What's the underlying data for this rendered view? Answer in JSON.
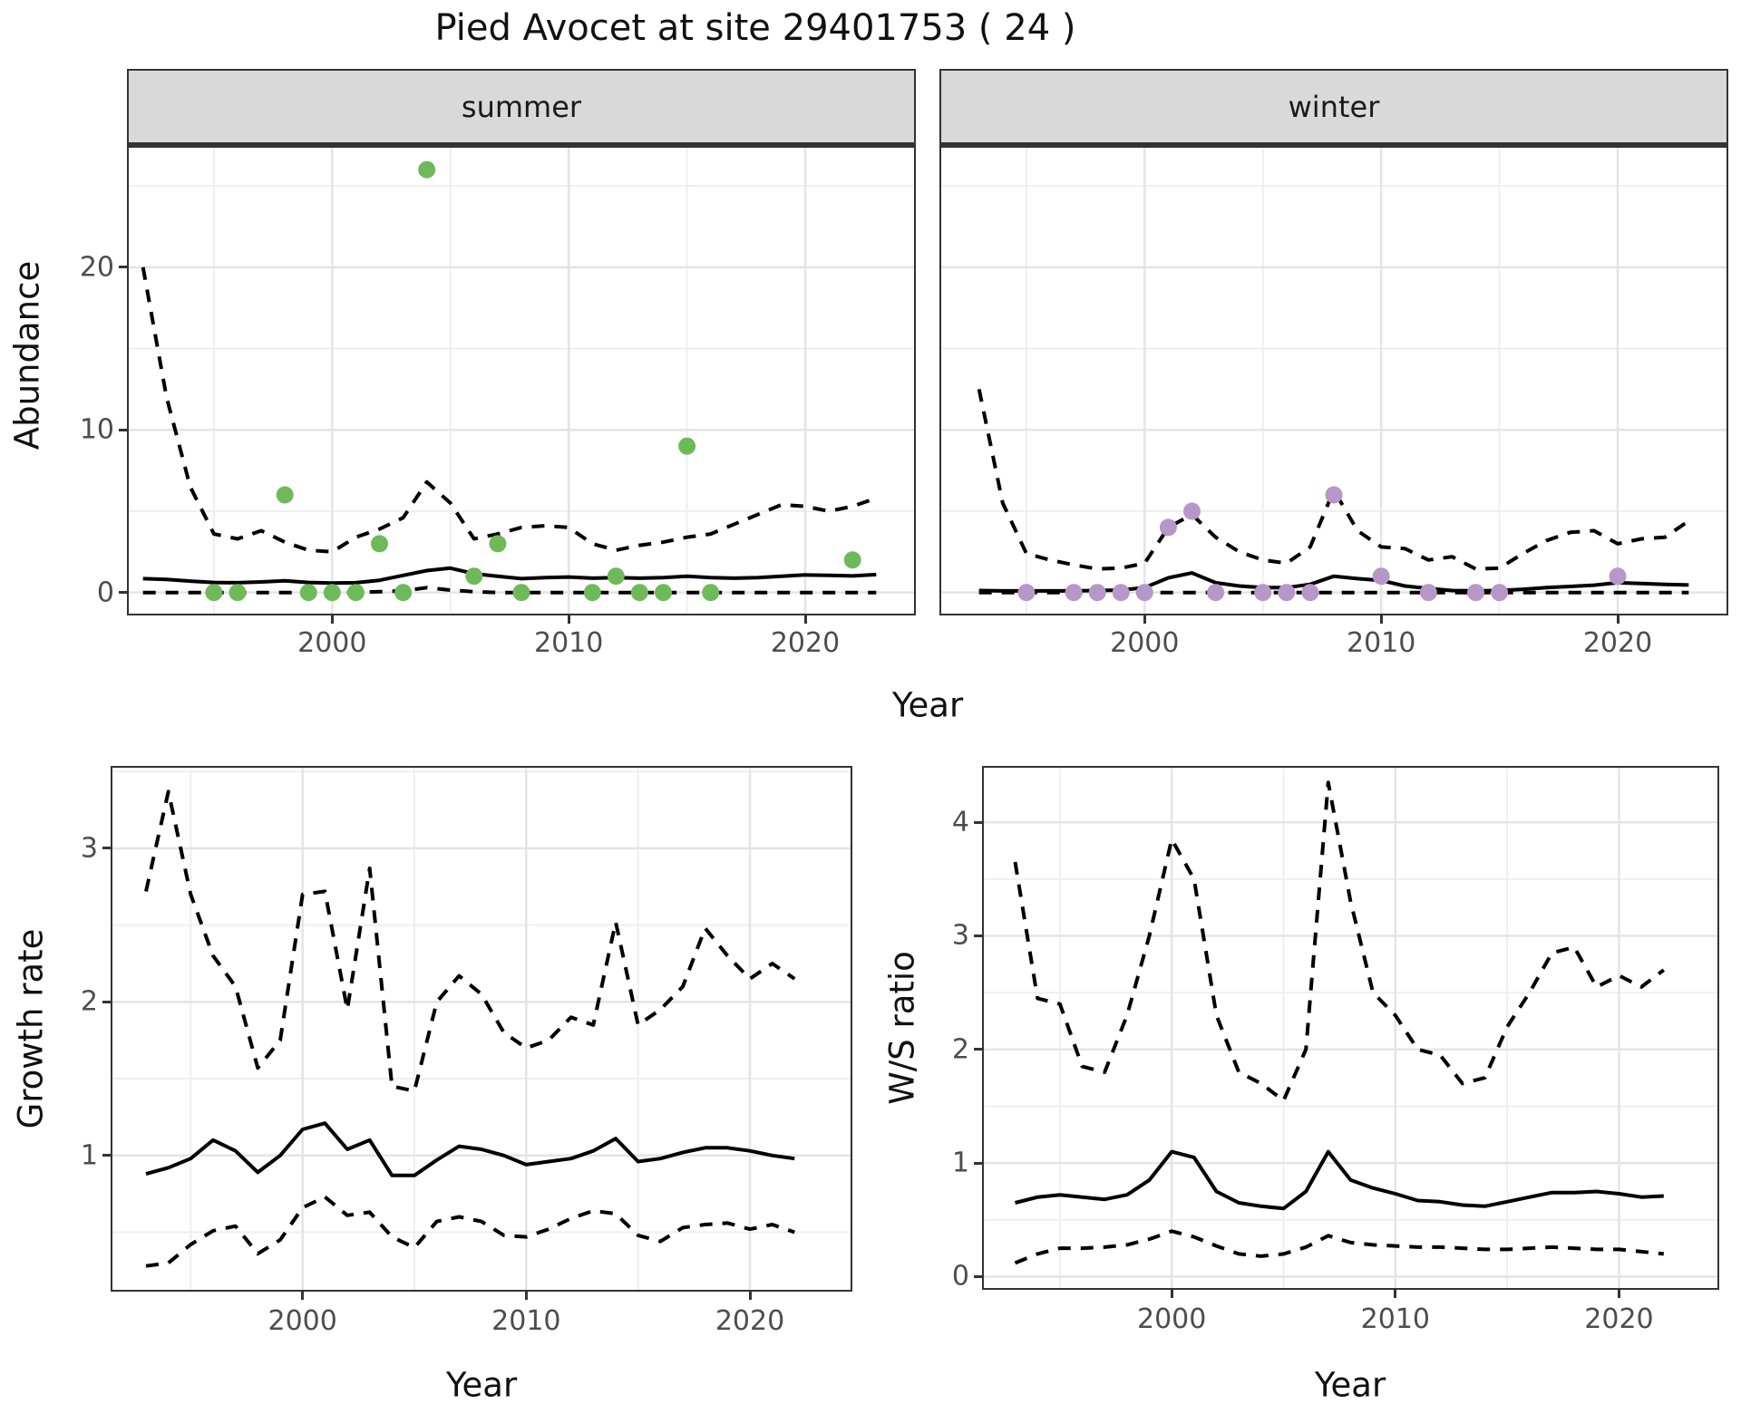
{
  "title": "Pied Avocet at site 29401753 ( 24 )",
  "colors": {
    "summer_point": "#6eba5a",
    "winter_point": "#b797c7",
    "line": "#000000",
    "strip_bg": "#d9d9d9",
    "panel_border": "#333333",
    "grid_major": "#e4e4e4",
    "grid_minor": "#efefef",
    "axis_text": "#4d4d4d"
  },
  "facets": {
    "summer_label": "summer",
    "winter_label": "winter"
  },
  "axis_titles": {
    "abundance": "Abundance",
    "year_top": "Year",
    "growth": "Growth rate",
    "ws_ratio": "W/S ratio",
    "year_growth": "Year",
    "year_ws": "Year"
  },
  "chart_data": [
    {
      "id": "summer",
      "type": "line",
      "title": "summer",
      "xlabel": "Year",
      "ylabel": "Abundance",
      "xlim": [
        1991.4,
        2024.6
      ],
      "ylim": [
        -1.3,
        27.35
      ],
      "xticks": [
        2000,
        2010,
        2020
      ],
      "minor_xticks": [
        1995,
        2005,
        2015
      ],
      "yticks": [
        0,
        10,
        20
      ],
      "minor_yticks": [
        5,
        15,
        25
      ],
      "series": [
        {
          "name": "upper CI",
          "style": "dashed",
          "x": [
            1992,
            1993,
            1994,
            1995,
            1996,
            1997,
            1998,
            1999,
            2000,
            2001,
            2002,
            2003,
            2004,
            2005,
            2006,
            2007,
            2008,
            2009,
            2010,
            2011,
            2012,
            2013,
            2014,
            2015,
            2016,
            2017,
            2018,
            2019,
            2020,
            2021,
            2022,
            2023
          ],
          "y": [
            20,
            12,
            6.5,
            3.6,
            3.3,
            3.8,
            3.1,
            2.6,
            2.5,
            3.4,
            3.9,
            4.6,
            6.8,
            5.5,
            3.3,
            3.6,
            4.0,
            4.1,
            4.0,
            3.0,
            2.6,
            2.9,
            3.1,
            3.4,
            3.6,
            4.2,
            4.8,
            5.4,
            5.3,
            5.0,
            5.3,
            5.8
          ]
        },
        {
          "name": "estimate",
          "style": "solid",
          "x": [
            1992,
            1993,
            1994,
            1995,
            1996,
            1997,
            1998,
            1999,
            2000,
            2001,
            2002,
            2003,
            2004,
            2005,
            2006,
            2007,
            2008,
            2009,
            2010,
            2011,
            2012,
            2013,
            2014,
            2015,
            2016,
            2017,
            2018,
            2019,
            2020,
            2021,
            2022,
            2023
          ],
          "y": [
            0.85,
            0.8,
            0.7,
            0.62,
            0.6,
            0.65,
            0.72,
            0.62,
            0.58,
            0.6,
            0.75,
            1.05,
            1.35,
            1.5,
            1.15,
            1.0,
            0.85,
            0.92,
            0.95,
            0.88,
            0.92,
            0.88,
            0.92,
            1.0,
            0.92,
            0.88,
            0.92,
            1.0,
            1.08,
            1.05,
            1.02,
            1.1
          ]
        },
        {
          "name": "lower CI",
          "style": "dashed",
          "x": [
            1992,
            1993,
            1994,
            1995,
            1996,
            1997,
            1998,
            1999,
            2000,
            2001,
            2002,
            2003,
            2004,
            2005,
            2006,
            2007,
            2008,
            2009,
            2010,
            2011,
            2012,
            2013,
            2014,
            2015,
            2016,
            2017,
            2018,
            2019,
            2020,
            2021,
            2022,
            2023
          ],
          "y": [
            0,
            0,
            0,
            0,
            0,
            0,
            0,
            0,
            0,
            0,
            0.05,
            0.1,
            0.3,
            0.15,
            0.05,
            0,
            0,
            0,
            0,
            0,
            0,
            0,
            0,
            0,
            0,
            0,
            0,
            0,
            0,
            0,
            0,
            0
          ]
        }
      ],
      "points": {
        "color_key": "summer_point",
        "xy": [
          [
            1995,
            0
          ],
          [
            1996,
            0
          ],
          [
            1998,
            6
          ],
          [
            1999,
            0
          ],
          [
            2000,
            0
          ],
          [
            2001,
            0
          ],
          [
            2002,
            3
          ],
          [
            2003,
            0
          ],
          [
            2004,
            26
          ],
          [
            2006,
            1
          ],
          [
            2007,
            3
          ],
          [
            2008,
            0
          ],
          [
            2011,
            0
          ],
          [
            2012,
            1
          ],
          [
            2013,
            0
          ],
          [
            2014,
            0
          ],
          [
            2015,
            9
          ],
          [
            2016,
            0
          ],
          [
            2022,
            2
          ]
        ]
      }
    },
    {
      "id": "winter",
      "type": "line",
      "title": "winter",
      "xlabel": "Year",
      "ylabel": "Abundance",
      "xlim": [
        1991.4,
        2024.6
      ],
      "ylim": [
        -1.3,
        27.35
      ],
      "xticks": [
        2000,
        2010,
        2020
      ],
      "minor_xticks": [
        1995,
        2005,
        2015
      ],
      "yticks": [
        0,
        10,
        20
      ],
      "minor_yticks": [
        5,
        15,
        25
      ],
      "hide_ylabels": true,
      "series": [
        {
          "name": "upper CI",
          "style": "dashed",
          "x": [
            1993,
            1994,
            1995,
            1996,
            1997,
            1998,
            1999,
            2000,
            2001,
            2002,
            2003,
            2004,
            2005,
            2006,
            2007,
            2008,
            2009,
            2010,
            2011,
            2012,
            2013,
            2014,
            2015,
            2016,
            2017,
            2018,
            2019,
            2020,
            2021,
            2022,
            2023
          ],
          "y": [
            12.5,
            5.5,
            2.4,
            2.0,
            1.7,
            1.45,
            1.5,
            1.8,
            4.0,
            4.8,
            3.4,
            2.5,
            2.0,
            1.8,
            2.8,
            6.3,
            3.8,
            2.8,
            2.7,
            2.0,
            2.2,
            1.45,
            1.5,
            2.4,
            3.2,
            3.7,
            3.8,
            3.0,
            3.3,
            3.4,
            4.4
          ]
        },
        {
          "name": "estimate",
          "style": "solid",
          "x": [
            1993,
            1994,
            1995,
            1996,
            1997,
            1998,
            1999,
            2000,
            2001,
            2002,
            2003,
            2004,
            2005,
            2006,
            2007,
            2008,
            2009,
            2010,
            2011,
            2012,
            2013,
            2014,
            2015,
            2016,
            2017,
            2018,
            2019,
            2020,
            2021,
            2022,
            2023
          ],
          "y": [
            0.12,
            0.1,
            0.1,
            0.1,
            0.1,
            0.12,
            0.15,
            0.3,
            0.9,
            1.2,
            0.6,
            0.4,
            0.3,
            0.3,
            0.5,
            1.0,
            0.85,
            0.74,
            0.4,
            0.25,
            0.12,
            0.1,
            0.12,
            0.2,
            0.3,
            0.37,
            0.45,
            0.6,
            0.55,
            0.5,
            0.46
          ]
        },
        {
          "name": "lower CI",
          "style": "dashed",
          "x": [
            1993,
            1994,
            1995,
            1996,
            1997,
            1998,
            1999,
            2000,
            2001,
            2002,
            2003,
            2004,
            2005,
            2006,
            2007,
            2008,
            2009,
            2010,
            2011,
            2012,
            2013,
            2014,
            2015,
            2016,
            2017,
            2018,
            2019,
            2020,
            2021,
            2022,
            2023
          ],
          "y": [
            0,
            0,
            0,
            0,
            0,
            0,
            0,
            0,
            0,
            0,
            0,
            0,
            0,
            0,
            0,
            0,
            0,
            0,
            0,
            0,
            0,
            0,
            0,
            0,
            0,
            0,
            0,
            0,
            0,
            0,
            0
          ]
        }
      ],
      "points": {
        "color_key": "winter_point",
        "xy": [
          [
            1995,
            0
          ],
          [
            1997,
            0
          ],
          [
            1998,
            0
          ],
          [
            1999,
            0
          ],
          [
            2000,
            0
          ],
          [
            2001,
            4
          ],
          [
            2002,
            5
          ],
          [
            2003,
            0
          ],
          [
            2005,
            0
          ],
          [
            2006,
            0
          ],
          [
            2007,
            0
          ],
          [
            2008,
            6
          ],
          [
            2010,
            1
          ],
          [
            2012,
            0
          ],
          [
            2014,
            0
          ],
          [
            2015,
            0
          ],
          [
            2020,
            1
          ]
        ]
      }
    },
    {
      "id": "growth",
      "type": "line",
      "title": "",
      "xlabel": "Year",
      "ylabel": "Growth rate",
      "xlim": [
        1991.5,
        2024.5
      ],
      "ylim": [
        0.125,
        3.525
      ],
      "xticks": [
        2000,
        2010,
        2020
      ],
      "minor_xticks": [
        1995,
        2005,
        2015
      ],
      "yticks": [
        1,
        2,
        3
      ],
      "minor_yticks": [
        0.5,
        1.5,
        2.5,
        3.5
      ],
      "series": [
        {
          "name": "upper CI",
          "style": "dashed",
          "x": [
            1993,
            1994,
            1995,
            1996,
            1997,
            1998,
            1999,
            2000,
            2001,
            2002,
            2003,
            2004,
            2005,
            2006,
            2007,
            2008,
            2009,
            2010,
            2011,
            2012,
            2013,
            2014,
            2015,
            2016,
            2017,
            2018,
            2019,
            2020,
            2021,
            2022
          ],
          "y": [
            2.72,
            3.37,
            2.7,
            2.3,
            2.1,
            1.57,
            1.75,
            2.7,
            2.72,
            1.95,
            2.87,
            1.45,
            1.42,
            2.0,
            2.17,
            2.05,
            1.8,
            1.7,
            1.75,
            1.9,
            1.85,
            2.52,
            1.85,
            1.95,
            2.1,
            2.48,
            2.3,
            2.15,
            2.25,
            2.15
          ]
        },
        {
          "name": "estimate",
          "style": "solid",
          "x": [
            1993,
            1994,
            1995,
            1996,
            1997,
            1998,
            1999,
            2000,
            2001,
            2002,
            2003,
            2004,
            2005,
            2006,
            2007,
            2008,
            2009,
            2010,
            2011,
            2012,
            2013,
            2014,
            2015,
            2016,
            2017,
            2018,
            2019,
            2020,
            2021,
            2022
          ],
          "y": [
            0.88,
            0.92,
            0.98,
            1.1,
            1.03,
            0.89,
            1.0,
            1.17,
            1.21,
            1.04,
            1.1,
            0.87,
            0.87,
            0.97,
            1.06,
            1.04,
            1.0,
            0.94,
            0.96,
            0.98,
            1.03,
            1.11,
            0.96,
            0.98,
            1.02,
            1.05,
            1.05,
            1.03,
            1.0,
            0.98
          ]
        },
        {
          "name": "lower CI",
          "style": "dashed",
          "x": [
            1993,
            1994,
            1995,
            1996,
            1997,
            1998,
            1999,
            2000,
            2001,
            2002,
            2003,
            2004,
            2005,
            2006,
            2007,
            2008,
            2009,
            2010,
            2011,
            2012,
            2013,
            2014,
            2015,
            2016,
            2017,
            2018,
            2019,
            2020,
            2021,
            2022
          ],
          "y": [
            0.28,
            0.3,
            0.42,
            0.51,
            0.54,
            0.36,
            0.45,
            0.66,
            0.73,
            0.61,
            0.63,
            0.47,
            0.4,
            0.57,
            0.6,
            0.57,
            0.48,
            0.47,
            0.52,
            0.59,
            0.64,
            0.62,
            0.48,
            0.44,
            0.53,
            0.55,
            0.56,
            0.52,
            0.55,
            0.5
          ]
        }
      ],
      "points": null
    },
    {
      "id": "ws",
      "type": "line",
      "title": "",
      "xlabel": "Year",
      "ylabel": "W/S ratio",
      "xlim": [
        1991.6,
        2024.4
      ],
      "ylim": [
        -0.1,
        4.48
      ],
      "xticks": [
        2000,
        2010,
        2020
      ],
      "minor_xticks": [
        1995,
        2005,
        2015
      ],
      "yticks": [
        0,
        1,
        2,
        3,
        4
      ],
      "minor_yticks": [
        0.5,
        1.5,
        2.5,
        3.5
      ],
      "series": [
        {
          "name": "upper CI",
          "style": "dashed",
          "x": [
            1993,
            1994,
            1995,
            1996,
            1997,
            1998,
            1999,
            2000,
            2001,
            2002,
            2003,
            2004,
            2005,
            2006,
            2007,
            2008,
            2009,
            2010,
            2011,
            2012,
            2013,
            2014,
            2015,
            2016,
            2017,
            2018,
            2019,
            2020,
            2021,
            2022
          ],
          "y": [
            3.65,
            2.45,
            2.4,
            1.85,
            1.8,
            2.3,
            3.0,
            3.85,
            3.5,
            2.3,
            1.8,
            1.7,
            1.55,
            2.0,
            4.35,
            3.3,
            2.5,
            2.3,
            2.0,
            1.95,
            1.7,
            1.75,
            2.2,
            2.5,
            2.85,
            2.9,
            2.55,
            2.65,
            2.55,
            2.7
          ]
        },
        {
          "name": "estimate",
          "style": "solid",
          "x": [
            1993,
            1994,
            1995,
            1996,
            1997,
            1998,
            1999,
            2000,
            2001,
            2002,
            2003,
            2004,
            2005,
            2006,
            2007,
            2008,
            2009,
            2010,
            2011,
            2012,
            2013,
            2014,
            2015,
            2016,
            2017,
            2018,
            2019,
            2020,
            2021,
            2022
          ],
          "y": [
            0.65,
            0.7,
            0.72,
            0.7,
            0.68,
            0.72,
            0.85,
            1.1,
            1.05,
            0.75,
            0.65,
            0.62,
            0.6,
            0.75,
            1.1,
            0.85,
            0.78,
            0.73,
            0.67,
            0.66,
            0.63,
            0.62,
            0.66,
            0.7,
            0.74,
            0.74,
            0.75,
            0.73,
            0.7,
            0.71
          ]
        },
        {
          "name": "lower CI",
          "style": "dashed",
          "x": [
            1993,
            1994,
            1995,
            1996,
            1997,
            1998,
            1999,
            2000,
            2001,
            2002,
            2003,
            2004,
            2005,
            2006,
            2007,
            2008,
            2009,
            2010,
            2011,
            2012,
            2013,
            2014,
            2015,
            2016,
            2017,
            2018,
            2019,
            2020,
            2021,
            2022
          ],
          "y": [
            0.12,
            0.2,
            0.25,
            0.25,
            0.26,
            0.28,
            0.33,
            0.4,
            0.35,
            0.27,
            0.2,
            0.18,
            0.2,
            0.26,
            0.36,
            0.3,
            0.28,
            0.27,
            0.26,
            0.26,
            0.25,
            0.24,
            0.24,
            0.25,
            0.26,
            0.25,
            0.24,
            0.24,
            0.22,
            0.2
          ]
        }
      ],
      "points": null
    }
  ]
}
